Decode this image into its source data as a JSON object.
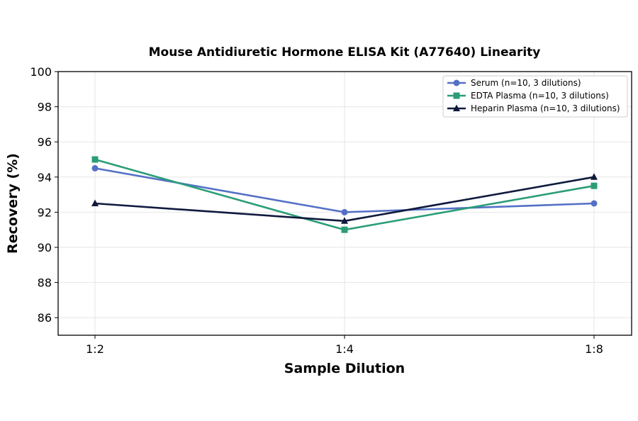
{
  "chart_data": {
    "type": "line",
    "title": "Mouse Antidiuretic Hormone ELISA Kit (A77640) Linearity",
    "xlabel": "Sample Dilution",
    "ylabel": "Recovery (%)",
    "categories": [
      "1:2",
      "1:4",
      "1:8"
    ],
    "ylim": [
      85,
      100
    ],
    "yticks": [
      86,
      88,
      90,
      92,
      94,
      96,
      98,
      100
    ],
    "grid": true,
    "legend_position": "top-right",
    "series": [
      {
        "name": "Serum (n=10, 3 dilutions)",
        "values": [
          94.5,
          92.0,
          92.5
        ],
        "color": "#5470c6",
        "marker": "circle"
      },
      {
        "name": "EDTA Plasma (n=10, 3 dilutions)",
        "values": [
          95.0,
          91.0,
          93.5
        ],
        "color": "#2a9d78",
        "marker": "square"
      },
      {
        "name": "Heparin Plasma (n=10, 3 dilutions)",
        "values": [
          92.5,
          91.5,
          94.0
        ],
        "color": "#0f1a3d",
        "marker": "triangle"
      }
    ]
  }
}
